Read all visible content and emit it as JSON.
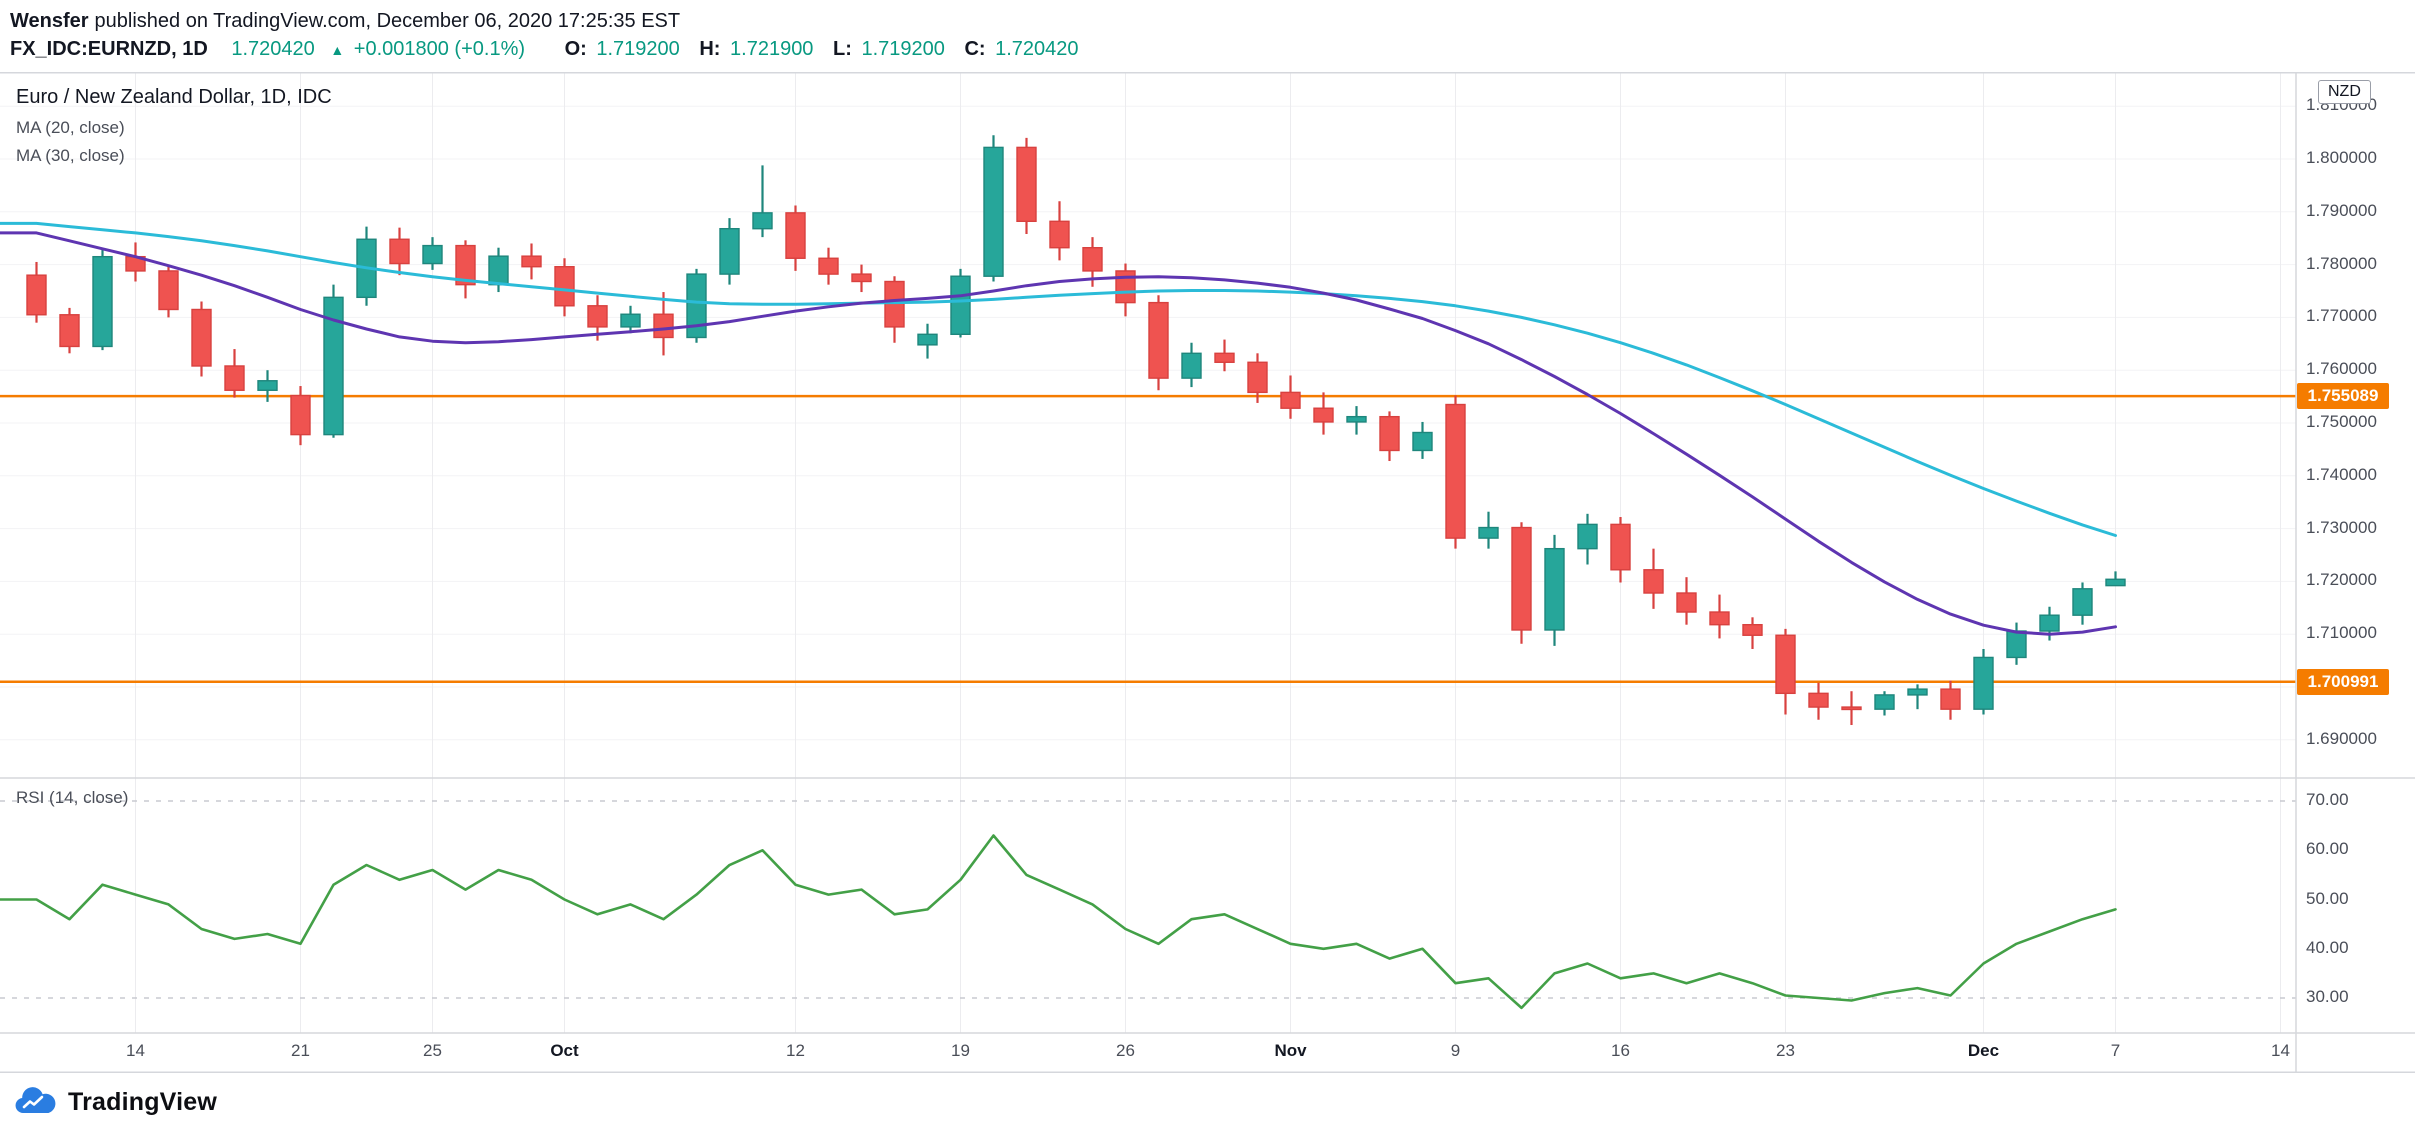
{
  "header": {
    "author": "Wensfer",
    "published_text": "published on TradingView.com, December 06, 2020 17:25:35 EST",
    "symbol": "FX_IDC:EURNZD, 1D",
    "last_price": "1.720420",
    "change_arrow": "▲",
    "change_text": "+0.001800 (+0.1%)",
    "o_label": "O:",
    "o": "1.719200",
    "h_label": "H:",
    "h": "1.721900",
    "l_label": "L:",
    "l": "1.719200",
    "c_label": "C:",
    "c": "1.720420"
  },
  "legend": {
    "title": "Euro / New Zealand Dollar, 1D, IDC",
    "ma20": "MA (20, close)",
    "ma30": "MA (30, close)",
    "rsi": "RSI (14, close)"
  },
  "price_axis": {
    "currency": "NZD",
    "ticks": [
      {
        "label": "1.810000",
        "value": 1.81
      },
      {
        "label": "1.800000",
        "value": 1.8
      },
      {
        "label": "1.790000",
        "value": 1.79
      },
      {
        "label": "1.780000",
        "value": 1.78
      },
      {
        "label": "1.770000",
        "value": 1.77
      },
      {
        "label": "1.760000",
        "value": 1.76
      },
      {
        "label": "1.750000",
        "value": 1.75
      },
      {
        "label": "1.740000",
        "value": 1.74
      },
      {
        "label": "1.730000",
        "value": 1.73
      },
      {
        "label": "1.720000",
        "value": 1.72
      },
      {
        "label": "1.710000",
        "value": 1.71
      },
      {
        "label": "1.690000",
        "value": 1.69
      }
    ]
  },
  "levels": [
    {
      "label": "1.755089",
      "value": 1.755089
    },
    {
      "label": "1.700991",
      "value": 1.700991
    }
  ],
  "rsi_axis": [
    {
      "label": "70.00",
      "value": 70
    },
    {
      "label": "60.00",
      "value": 60
    },
    {
      "label": "50.00",
      "value": 50
    },
    {
      "label": "40.00",
      "value": 40
    },
    {
      "label": "30.00",
      "value": 30
    }
  ],
  "time_axis": [
    {
      "label": "14",
      "bar": 3
    },
    {
      "label": "21",
      "bar": 8
    },
    {
      "label": "25",
      "bar": 12
    },
    {
      "label": "Oct",
      "bar": 16,
      "major": true
    },
    {
      "label": "12",
      "bar": 23
    },
    {
      "label": "19",
      "bar": 28
    },
    {
      "label": "26",
      "bar": 33
    },
    {
      "label": "Nov",
      "bar": 38,
      "major": true
    },
    {
      "label": "9",
      "bar": 43
    },
    {
      "label": "16",
      "bar": 48
    },
    {
      "label": "23",
      "bar": 53
    },
    {
      "label": "Dec",
      "bar": 59,
      "major": true
    },
    {
      "label": "7",
      "bar": 63
    },
    {
      "label": "14",
      "bar": 68
    }
  ],
  "footer": {
    "brand": "TradingView"
  },
  "colors": {
    "up": "#26a69a",
    "down": "#ef5350",
    "up_border": "#1e867c",
    "down_border": "#d8413f",
    "ma20": "#5e35b1",
    "ma30": "#2bbbd8",
    "rsi": "#43a047",
    "level": "#f57c00",
    "accent_teal": "#089981",
    "brand_blue": "#2a7de1"
  },
  "chart_data": {
    "type": "candlestick",
    "title": "Euro / New Zealand Dollar, 1D, IDC",
    "symbol": "EURNZD",
    "interval": "1D",
    "price_axis_range": [
      1.683,
      1.817
    ],
    "rsi_range": [
      23,
      75
    ],
    "horizontal_lines": [
      1.755089,
      1.700991
    ],
    "rsi_ticks": [
      70,
      60,
      50,
      40,
      30
    ],
    "overlays": [
      "MA (20, close)",
      "MA (30, close)"
    ],
    "lower_panel": "RSI (14, close)",
    "candles": [
      {
        "t": "Sep 9",
        "o": 1.778,
        "h": 1.7805,
        "l": 1.769,
        "c": 1.7705
      },
      {
        "t": "Sep 10",
        "o": 1.7705,
        "h": 1.7718,
        "l": 1.7632,
        "c": 1.7645
      },
      {
        "t": "Sep 11",
        "o": 1.7645,
        "h": 1.7828,
        "l": 1.7638,
        "c": 1.7815
      },
      {
        "t": "Sep 14",
        "o": 1.7815,
        "h": 1.7842,
        "l": 1.7768,
        "c": 1.7788
      },
      {
        "t": "Sep 15",
        "o": 1.7788,
        "h": 1.78,
        "l": 1.77,
        "c": 1.7715
      },
      {
        "t": "Sep 16",
        "o": 1.7715,
        "h": 1.773,
        "l": 1.7588,
        "c": 1.7608
      },
      {
        "t": "Sep 17",
        "o": 1.7608,
        "h": 1.764,
        "l": 1.7548,
        "c": 1.7562
      },
      {
        "t": "Sep 18",
        "o": 1.7562,
        "h": 1.76,
        "l": 1.754,
        "c": 1.758
      },
      {
        "t": "Sep 21",
        "o": 1.7552,
        "h": 1.757,
        "l": 1.7458,
        "c": 1.7478
      },
      {
        "t": "Sep 22",
        "o": 1.7478,
        "h": 1.7762,
        "l": 1.7472,
        "c": 1.7738
      },
      {
        "t": "Sep 23",
        "o": 1.7738,
        "h": 1.7872,
        "l": 1.7722,
        "c": 1.7848
      },
      {
        "t": "Sep 24",
        "o": 1.7848,
        "h": 1.787,
        "l": 1.778,
        "c": 1.7802
      },
      {
        "t": "Sep 25",
        "o": 1.7802,
        "h": 1.7852,
        "l": 1.779,
        "c": 1.7836
      },
      {
        "t": "Sep 28",
        "o": 1.7836,
        "h": 1.7846,
        "l": 1.7736,
        "c": 1.7762
      },
      {
        "t": "Sep 29",
        "o": 1.7762,
        "h": 1.7832,
        "l": 1.7748,
        "c": 1.7816
      },
      {
        "t": "Sep 30",
        "o": 1.7816,
        "h": 1.784,
        "l": 1.7772,
        "c": 1.7796
      },
      {
        "t": "Oct 1",
        "o": 1.7796,
        "h": 1.7812,
        "l": 1.7702,
        "c": 1.7722
      },
      {
        "t": "Oct 2",
        "o": 1.7722,
        "h": 1.7742,
        "l": 1.7656,
        "c": 1.7682
      },
      {
        "t": "Oct 5",
        "o": 1.7682,
        "h": 1.7722,
        "l": 1.767,
        "c": 1.7706
      },
      {
        "t": "Oct 6",
        "o": 1.7706,
        "h": 1.7748,
        "l": 1.7628,
        "c": 1.7662
      },
      {
        "t": "Oct 7",
        "o": 1.7662,
        "h": 1.7792,
        "l": 1.7652,
        "c": 1.7782
      },
      {
        "t": "Oct 8",
        "o": 1.7782,
        "h": 1.7888,
        "l": 1.7762,
        "c": 1.7868
      },
      {
        "t": "Oct 9",
        "o": 1.7868,
        "h": 1.7988,
        "l": 1.7852,
        "c": 1.7898
      },
      {
        "t": "Oct 12",
        "o": 1.7898,
        "h": 1.7912,
        "l": 1.7788,
        "c": 1.7812
      },
      {
        "t": "Oct 13",
        "o": 1.7812,
        "h": 1.7832,
        "l": 1.7762,
        "c": 1.7782
      },
      {
        "t": "Oct 14",
        "o": 1.7782,
        "h": 1.78,
        "l": 1.7748,
        "c": 1.7768
      },
      {
        "t": "Oct 15",
        "o": 1.7768,
        "h": 1.7778,
        "l": 1.7652,
        "c": 1.7682
      },
      {
        "t": "Oct 16",
        "o": 1.7648,
        "h": 1.7688,
        "l": 1.7622,
        "c": 1.7668
      },
      {
        "t": "Oct 19",
        "o": 1.7668,
        "h": 1.7792,
        "l": 1.7662,
        "c": 1.7778
      },
      {
        "t": "Oct 20",
        "o": 1.7778,
        "h": 1.8045,
        "l": 1.7768,
        "c": 1.8022
      },
      {
        "t": "Oct 21",
        "o": 1.8022,
        "h": 1.804,
        "l": 1.7858,
        "c": 1.7882
      },
      {
        "t": "Oct 22",
        "o": 1.7882,
        "h": 1.792,
        "l": 1.7808,
        "c": 1.7832
      },
      {
        "t": "Oct 23",
        "o": 1.7832,
        "h": 1.7852,
        "l": 1.7758,
        "c": 1.7788
      },
      {
        "t": "Oct 26",
        "o": 1.7788,
        "h": 1.7802,
        "l": 1.7702,
        "c": 1.7728
      },
      {
        "t": "Oct 27",
        "o": 1.7728,
        "h": 1.7742,
        "l": 1.7562,
        "c": 1.7585
      },
      {
        "t": "Oct 28",
        "o": 1.7585,
        "h": 1.7652,
        "l": 1.7568,
        "c": 1.7632
      },
      {
        "t": "Oct 29",
        "o": 1.7632,
        "h": 1.7658,
        "l": 1.7598,
        "c": 1.7615
      },
      {
        "t": "Oct 30",
        "o": 1.7615,
        "h": 1.7632,
        "l": 1.7538,
        "c": 1.7558
      },
      {
        "t": "Nov 2",
        "o": 1.7558,
        "h": 1.759,
        "l": 1.7508,
        "c": 1.7528
      },
      {
        "t": "Nov 3",
        "o": 1.7528,
        "h": 1.7558,
        "l": 1.7478,
        "c": 1.7502
      },
      {
        "t": "Nov 4",
        "o": 1.7502,
        "h": 1.7532,
        "l": 1.7478,
        "c": 1.7512
      },
      {
        "t": "Nov 5",
        "o": 1.7512,
        "h": 1.7522,
        "l": 1.7428,
        "c": 1.7448
      },
      {
        "t": "Nov 6",
        "o": 1.7448,
        "h": 1.7502,
        "l": 1.7432,
        "c": 1.7482
      },
      {
        "t": "Nov 9",
        "o": 1.7535,
        "h": 1.7552,
        "l": 1.7262,
        "c": 1.7282
      },
      {
        "t": "Nov 10",
        "o": 1.7282,
        "h": 1.7332,
        "l": 1.7262,
        "c": 1.7302
      },
      {
        "t": "Nov 11",
        "o": 1.7302,
        "h": 1.7312,
        "l": 1.7082,
        "c": 1.7108
      },
      {
        "t": "Nov 12",
        "o": 1.7108,
        "h": 1.7288,
        "l": 1.7078,
        "c": 1.7262
      },
      {
        "t": "Nov 13",
        "o": 1.7262,
        "h": 1.7328,
        "l": 1.7232,
        "c": 1.7308
      },
      {
        "t": "Nov 16",
        "o": 1.7308,
        "h": 1.7322,
        "l": 1.7198,
        "c": 1.7222
      },
      {
        "t": "Nov 17",
        "o": 1.7222,
        "h": 1.7262,
        "l": 1.7148,
        "c": 1.7178
      },
      {
        "t": "Nov 18",
        "o": 1.7178,
        "h": 1.7208,
        "l": 1.7118,
        "c": 1.7142
      },
      {
        "t": "Nov 19",
        "o": 1.7142,
        "h": 1.7175,
        "l": 1.7092,
        "c": 1.7118
      },
      {
        "t": "Nov 20",
        "o": 1.7118,
        "h": 1.7132,
        "l": 1.7072,
        "c": 1.7098
      },
      {
        "t": "Nov 23",
        "o": 1.7098,
        "h": 1.711,
        "l": 1.6948,
        "c": 1.6988
      },
      {
        "t": "Nov 24",
        "o": 1.6988,
        "h": 1.7008,
        "l": 1.6938,
        "c": 1.6962
      },
      {
        "t": "Nov 25",
        "o": 1.6962,
        "h": 1.6992,
        "l": 1.6928,
        "c": 1.6958
      },
      {
        "t": "Nov 26",
        "o": 1.6958,
        "h": 1.6992,
        "l": 1.6946,
        "c": 1.6985
      },
      {
        "t": "Nov 27",
        "o": 1.6985,
        "h": 1.7005,
        "l": 1.6958,
        "c": 1.6996
      },
      {
        "t": "Nov 30",
        "o": 1.6996,
        "h": 1.7012,
        "l": 1.6938,
        "c": 1.6958
      },
      {
        "t": "Dec 1",
        "o": 1.6958,
        "h": 1.7072,
        "l": 1.6948,
        "c": 1.7056
      },
      {
        "t": "Dec 2",
        "o": 1.7056,
        "h": 1.7122,
        "l": 1.7042,
        "c": 1.7106
      },
      {
        "t": "Dec 3",
        "o": 1.7106,
        "h": 1.7152,
        "l": 1.7088,
        "c": 1.7136
      },
      {
        "t": "Dec 4",
        "o": 1.7136,
        "h": 1.7198,
        "l": 1.7118,
        "c": 1.7186
      },
      {
        "t": "Dec 7",
        "o": 1.7192,
        "h": 1.7219,
        "l": 1.7192,
        "c": 1.7204
      }
    ],
    "ma20": [
      1.786,
      1.7845,
      1.783,
      1.7815,
      1.7798,
      1.778,
      1.776,
      1.7738,
      1.7715,
      1.7695,
      1.7678,
      1.7663,
      1.7655,
      1.7652,
      1.7654,
      1.7658,
      1.7663,
      1.7668,
      1.7673,
      1.7678,
      1.7684,
      1.7692,
      1.7702,
      1.7712,
      1.772,
      1.7727,
      1.7732,
      1.7736,
      1.7741,
      1.775,
      1.776,
      1.7768,
      1.7773,
      1.7776,
      1.7777,
      1.7775,
      1.7771,
      1.7765,
      1.7757,
      1.7746,
      1.7733,
      1.7716,
      1.7698,
      1.7675,
      1.765,
      1.762,
      1.7588,
      1.7554,
      1.7518,
      1.748,
      1.7441,
      1.7401,
      1.736,
      1.7318,
      1.7276,
      1.7236,
      1.7199,
      1.7166,
      1.7138,
      1.7117,
      1.7104,
      1.71,
      1.7104,
      1.7114
    ],
    "ma30": [
      1.7878,
      1.7872,
      1.7866,
      1.786,
      1.7853,
      1.7845,
      1.7836,
      1.7826,
      1.7815,
      1.7804,
      1.7794,
      1.7785,
      1.7777,
      1.777,
      1.7764,
      1.7758,
      1.7752,
      1.7746,
      1.774,
      1.7734,
      1.7729,
      1.7726,
      1.7725,
      1.7725,
      1.7726,
      1.7727,
      1.7728,
      1.7729,
      1.7731,
      1.7734,
      1.7738,
      1.7742,
      1.7745,
      1.7748,
      1.775,
      1.7751,
      1.7751,
      1.775,
      1.7748,
      1.7745,
      1.7741,
      1.7736,
      1.773,
      1.7722,
      1.7712,
      1.77,
      1.7686,
      1.767,
      1.7652,
      1.7632,
      1.761,
      1.7586,
      1.7561,
      1.7535,
      1.7508,
      1.7481,
      1.7454,
      1.7427,
      1.7401,
      1.7376,
      1.7352,
      1.7329,
      1.7307,
      1.7287
    ],
    "rsi": [
      50,
      46,
      53,
      51,
      49,
      44,
      42,
      43,
      41,
      53,
      57,
      54,
      56,
      52,
      56,
      54,
      50,
      47,
      49,
      46,
      51,
      57,
      60,
      53,
      51,
      52,
      47,
      48,
      54,
      63,
      55,
      52,
      49,
      44,
      41,
      46,
      47,
      44,
      41,
      40,
      41,
      38,
      40,
      33,
      34,
      28,
      35,
      37,
      34,
      35,
      33,
      35,
      33,
      30.5,
      30,
      29.5,
      31,
      32,
      30.5,
      37,
      41,
      43.5,
      46,
      48
    ]
  }
}
